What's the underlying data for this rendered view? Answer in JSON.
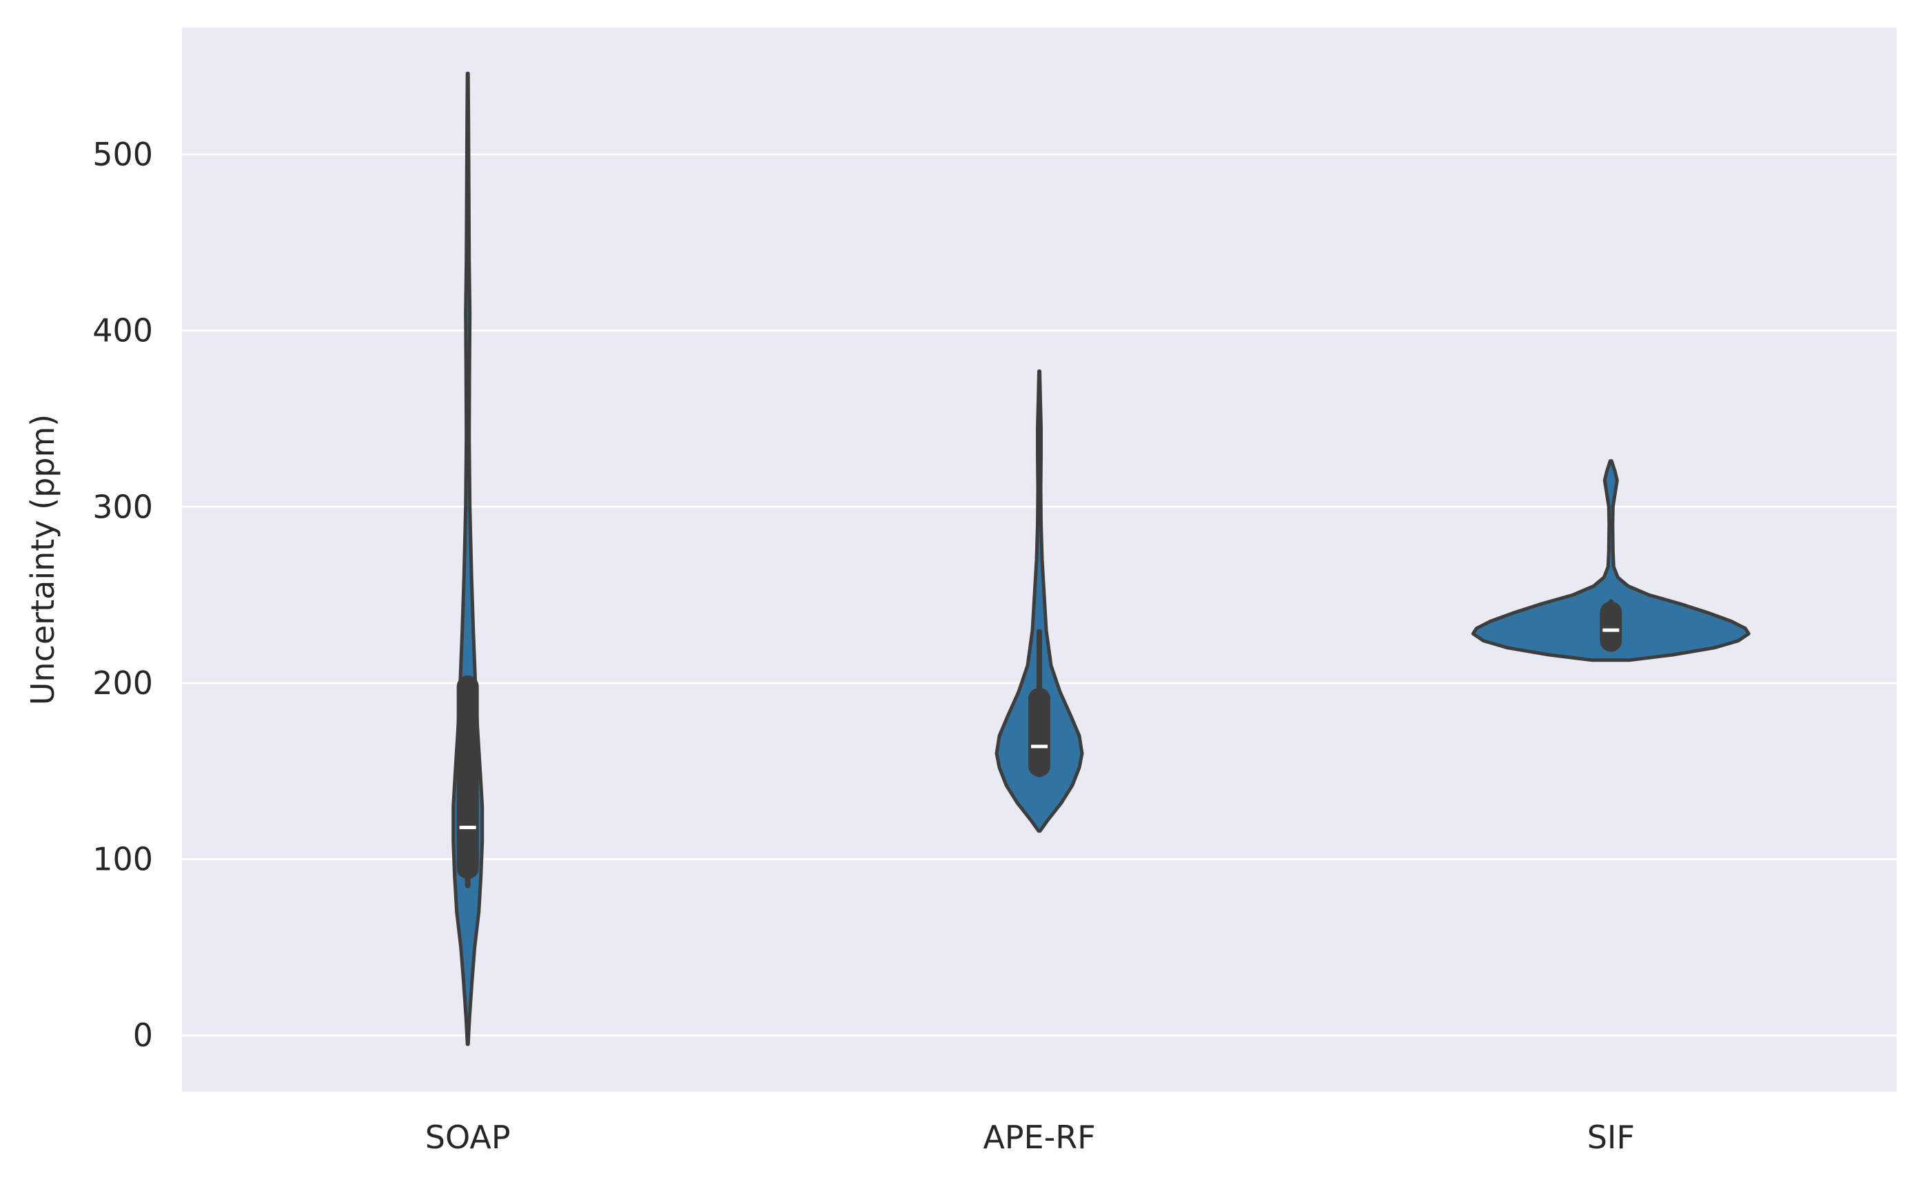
{
  "chart_data": {
    "type": "violin",
    "title": "",
    "xlabel": "",
    "ylabel": "Uncertainty (ppm)",
    "categories": [
      "SOAP",
      "APE-RF",
      "SIF"
    ],
    "ylim": [
      -32,
      572
    ],
    "yticks": [
      0,
      100,
      200,
      300,
      400,
      500
    ],
    "grid": true,
    "colors": {
      "background": "#eaeaf2",
      "grid": "#ffffff",
      "violin_fill": "#3274a1",
      "outline": "#3d3d3d",
      "box": "#3d3d3d",
      "median": "#ffffff"
    },
    "violins": [
      {
        "category": "SOAP",
        "min": -5,
        "max": 546,
        "q1": 95,
        "median": 118,
        "q3": 198,
        "whisker_low": 85,
        "whisker_high": 200,
        "density": [
          [
            -5,
            0.5
          ],
          [
            10,
            2.5
          ],
          [
            30,
            6
          ],
          [
            50,
            10
          ],
          [
            70,
            16
          ],
          [
            90,
            19
          ],
          [
            110,
            21
          ],
          [
            130,
            21
          ],
          [
            150,
            18
          ],
          [
            175,
            14
          ],
          [
            200,
            11
          ],
          [
            230,
            8
          ],
          [
            260,
            5.5
          ],
          [
            300,
            3
          ],
          [
            340,
            2
          ],
          [
            380,
            2.5
          ],
          [
            410,
            3
          ],
          [
            440,
            2
          ],
          [
            480,
            1.5
          ],
          [
            520,
            1
          ],
          [
            546,
            0.5
          ]
        ]
      },
      {
        "category": "APE-RF",
        "min": 116,
        "max": 377,
        "q1": 153,
        "median": 164,
        "q3": 191,
        "whisker_low": 148,
        "whisker_high": 229,
        "density": [
          [
            116,
            1
          ],
          [
            122,
            12
          ],
          [
            132,
            32
          ],
          [
            142,
            48
          ],
          [
            152,
            58
          ],
          [
            160,
            62
          ],
          [
            170,
            58
          ],
          [
            182,
            45
          ],
          [
            195,
            30
          ],
          [
            210,
            17
          ],
          [
            230,
            10
          ],
          [
            250,
            7
          ],
          [
            270,
            4
          ],
          [
            290,
            2.5
          ],
          [
            310,
            2
          ],
          [
            330,
            2.5
          ],
          [
            345,
            2.5
          ],
          [
            360,
            1.5
          ],
          [
            377,
            0.5
          ]
        ]
      },
      {
        "category": "SIF",
        "min": 213,
        "max": 326,
        "q1": 224,
        "median": 230,
        "q3": 240,
        "whisker_low": 224,
        "whisker_high": 246,
        "density": [
          [
            213,
            28
          ],
          [
            216,
            90
          ],
          [
            220,
            150
          ],
          [
            224,
            185
          ],
          [
            228,
            200
          ],
          [
            231,
            195
          ],
          [
            235,
            175
          ],
          [
            240,
            140
          ],
          [
            245,
            100
          ],
          [
            250,
            55
          ],
          [
            255,
            25
          ],
          [
            260,
            10
          ],
          [
            266,
            4
          ],
          [
            275,
            3
          ],
          [
            290,
            2.5
          ],
          [
            300,
            3
          ],
          [
            310,
            7
          ],
          [
            315,
            9
          ],
          [
            320,
            6
          ],
          [
            326,
            1
          ]
        ]
      }
    ]
  }
}
